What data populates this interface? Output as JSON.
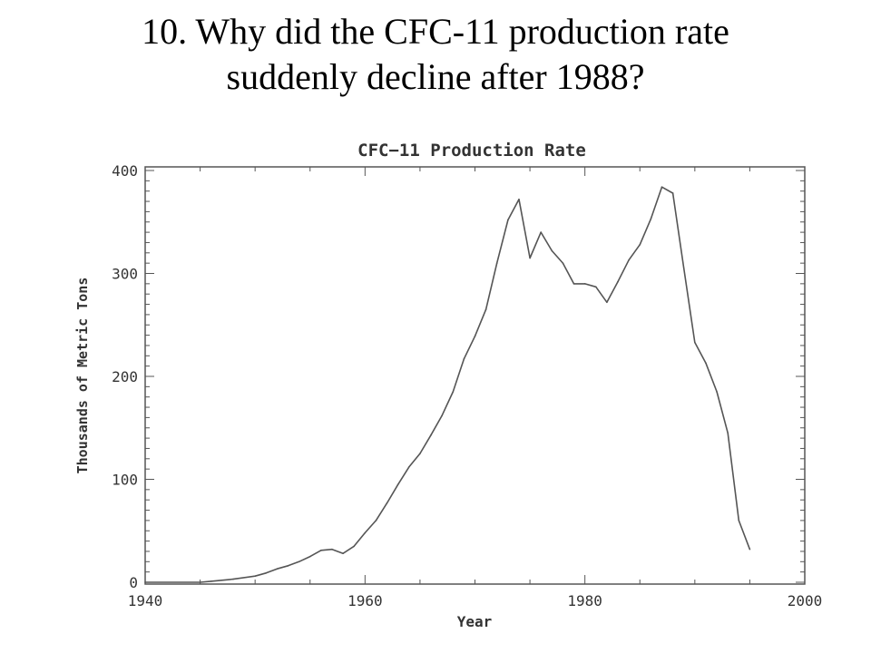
{
  "slide": {
    "title_line1": "10. Why did the CFC-11 production rate",
    "title_line2": "suddenly decline after 1988?"
  },
  "chart_data": {
    "type": "line",
    "title": "CFC−11 Production Rate",
    "xlabel": "Year",
    "ylabel": "Thousands of Metric Tons",
    "xlim": [
      1940,
      2000
    ],
    "ylim": [
      0,
      400
    ],
    "xticks": [
      "1940",
      "1960",
      "1980",
      "2000"
    ],
    "yticks": [
      "0",
      "100",
      "200",
      "300",
      "400"
    ],
    "grid": false,
    "line_color": "#555555",
    "series": [
      {
        "x": [
          1940,
          1945,
          1946,
          1948,
          1950,
          1951,
          1952,
          1953,
          1954,
          1955,
          1956,
          1957,
          1958,
          1959,
          1960,
          1961,
          1962,
          1963,
          1964,
          1965,
          1966,
          1967,
          1968,
          1969,
          1970,
          1971,
          1972,
          1973,
          1974,
          1975,
          1976,
          1977,
          1978,
          1979,
          1980,
          1981,
          1982,
          1983,
          1984,
          1985,
          1986,
          1987,
          1988,
          1989,
          1990,
          1991,
          1992,
          1993,
          1994,
          1995
        ],
        "y": [
          0,
          0,
          1,
          3,
          6,
          9,
          13,
          16,
          20,
          25,
          31,
          32,
          28,
          35,
          48,
          60,
          77,
          95,
          112,
          125,
          143,
          162,
          185,
          217,
          239,
          265,
          310,
          352,
          372,
          315,
          340,
          322,
          310,
          290,
          290,
          287,
          272,
          292,
          313,
          328,
          353,
          384,
          378,
          305,
          233,
          213,
          185,
          145,
          60,
          32
        ]
      }
    ]
  }
}
